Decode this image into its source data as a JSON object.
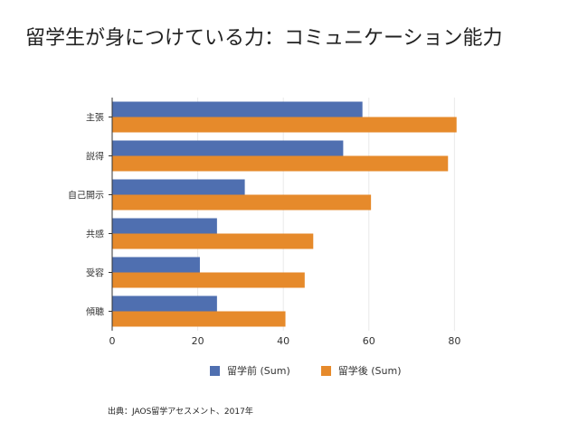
{
  "title": "留学生が身につけている力：コミュニケーション能力",
  "source": "出典：JAOS留学アセスメント、2017年",
  "colors": {
    "before": "#4f6fb0",
    "after": "#e68a2b",
    "grid": "#e9e9e9",
    "axis": "#333333"
  },
  "chart_data": {
    "type": "bar",
    "orientation": "horizontal",
    "categories": [
      "主張",
      "説得",
      "自己開示",
      "共感",
      "受容",
      "傾聴"
    ],
    "series": [
      {
        "name": "留学前 (Sum)",
        "values": [
          58.5,
          54,
          31,
          24.5,
          20.5,
          24.5
        ]
      },
      {
        "name": "留学後 (Sum)",
        "values": [
          80.5,
          78.5,
          60.5,
          47,
          45,
          40.5
        ]
      }
    ],
    "xlim": [
      0,
      85
    ],
    "xticks": [
      0,
      20,
      40,
      60,
      80
    ],
    "grid": true,
    "legend_position": "bottom"
  }
}
